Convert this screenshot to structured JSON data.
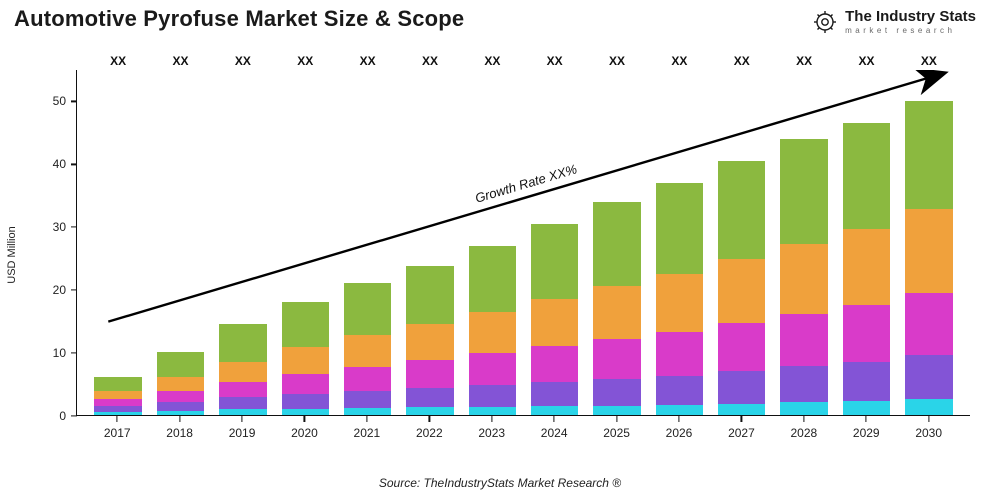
{
  "title": "Automotive Pyrofuse Market Size & Scope",
  "logo": {
    "main": "The Industry Stats",
    "sub": "market research"
  },
  "source": "Source: TheIndustryStats Market Research ®",
  "y_axis": {
    "label": "USD Million",
    "min": 0,
    "max": 55,
    "ticks": [
      0,
      10,
      20,
      30,
      40,
      50
    ]
  },
  "growth_label": "Growth Rate XX%",
  "categories": [
    "2017",
    "2018",
    "2019",
    "2020",
    "2021",
    "2022",
    "2023",
    "2024",
    "2025",
    "2026",
    "2027",
    "2028",
    "2029",
    "2030"
  ],
  "bar_top_label": "XX",
  "series_colors": [
    "#2ad4e8",
    "#8354d6",
    "#d93bc9",
    "#f0a13c",
    "#8bb940"
  ],
  "stacks": [
    {
      "segments": [
        0.5,
        0.9,
        1.2,
        1.3,
        2.1
      ],
      "total": 6.0
    },
    {
      "segments": [
        0.7,
        1.4,
        1.8,
        2.1,
        4.0
      ],
      "total": 10.0
    },
    {
      "segments": [
        0.9,
        1.9,
        2.5,
        3.2,
        6.0
      ],
      "total": 14.5
    },
    {
      "segments": [
        1.0,
        2.3,
        3.3,
        4.2,
        7.2
      ],
      "total": 18.0
    },
    {
      "segments": [
        1.1,
        2.7,
        3.9,
        5.0,
        8.3
      ],
      "total": 21.0
    },
    {
      "segments": [
        1.2,
        3.1,
        4.5,
        5.7,
        9.2
      ],
      "total": 23.7
    },
    {
      "segments": [
        1.3,
        3.5,
        5.1,
        6.6,
        10.5
      ],
      "total": 27.0
    },
    {
      "segments": [
        1.4,
        3.9,
        5.7,
        7.5,
        12.0
      ],
      "total": 30.5
    },
    {
      "segments": [
        1.5,
        4.3,
        6.3,
        8.4,
        13.5
      ],
      "total": 34.0
    },
    {
      "segments": [
        1.6,
        4.7,
        6.9,
        9.3,
        14.5
      ],
      "total": 37.0
    },
    {
      "segments": [
        1.8,
        5.2,
        7.6,
        10.2,
        15.7
      ],
      "total": 40.5
    },
    {
      "segments": [
        2.0,
        5.8,
        8.3,
        11.2,
        16.7
      ],
      "total": 44.0
    },
    {
      "segments": [
        2.2,
        6.3,
        9.0,
        12.1,
        16.9
      ],
      "total": 46.5
    },
    {
      "segments": [
        2.5,
        7.0,
        10.0,
        13.3,
        17.2
      ],
      "total": 50.0
    }
  ],
  "arrow": {
    "x1_pct": 3.5,
    "y1_val": 15.0,
    "x2_pct": 97.0,
    "y2_val": 54.5
  },
  "style": {
    "title_fontsize": 22,
    "axis_fontsize": 12,
    "bar_width_pct": 76,
    "background": "#ffffff",
    "axis_color": "#111111"
  }
}
